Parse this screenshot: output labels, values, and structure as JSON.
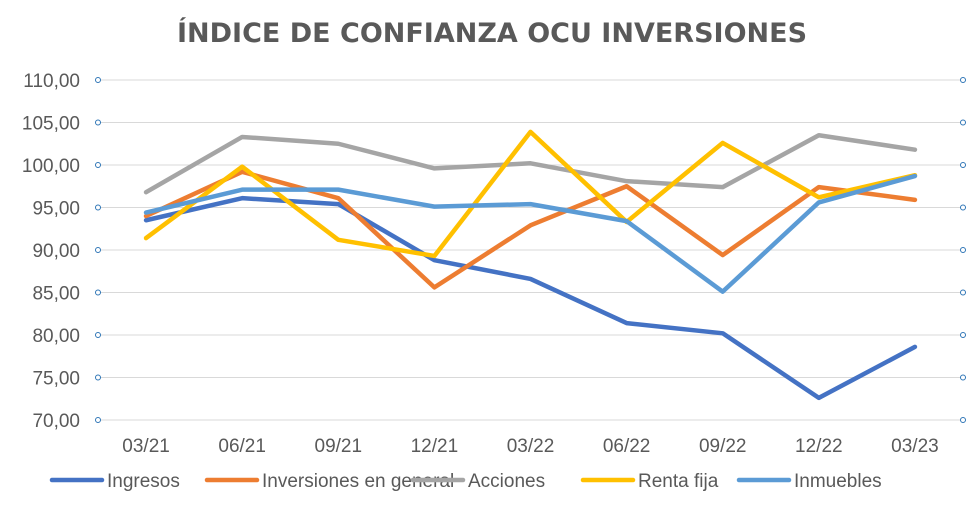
{
  "chart_data": {
    "type": "line",
    "title": "ÍNDICE DE CONFIANZA OCU INVERSIONES",
    "categories": [
      "03/21",
      "06/21",
      "09/21",
      "12/21",
      "03/22",
      "06/22",
      "09/22",
      "12/22",
      "03/23"
    ],
    "ylim": [
      70,
      110
    ],
    "yticks": [
      "70,00",
      "75,00",
      "80,00",
      "85,00",
      "90,00",
      "95,00",
      "100,00",
      "105,00",
      "110,00"
    ],
    "grid": true,
    "legend": "bottom",
    "series": [
      {
        "name": "Ingresos",
        "color": "#4472C4",
        "values": [
          93.5,
          96.1,
          95.4,
          88.8,
          86.6,
          81.4,
          80.2,
          72.6,
          78.6
        ]
      },
      {
        "name": "Inversiones en general",
        "color": "#ED7D31",
        "values": [
          94.0,
          99.2,
          96.1,
          85.6,
          92.9,
          97.5,
          89.4,
          97.4,
          95.9
        ]
      },
      {
        "name": "Acciones",
        "color": "#A5A5A5",
        "values": [
          96.8,
          103.3,
          102.5,
          99.6,
          100.2,
          98.1,
          97.4,
          103.5,
          101.8
        ]
      },
      {
        "name": "Renta fija",
        "color": "#FFC000",
        "values": [
          91.4,
          99.8,
          91.2,
          89.3,
          103.9,
          93.3,
          102.6,
          96.2,
          98.8
        ]
      },
      {
        "name": "Inmuebles",
        "color": "#5B9BD5",
        "values": [
          94.4,
          97.1,
          97.1,
          95.1,
          95.4,
          93.4,
          85.1,
          95.6,
          98.7
        ]
      }
    ]
  }
}
